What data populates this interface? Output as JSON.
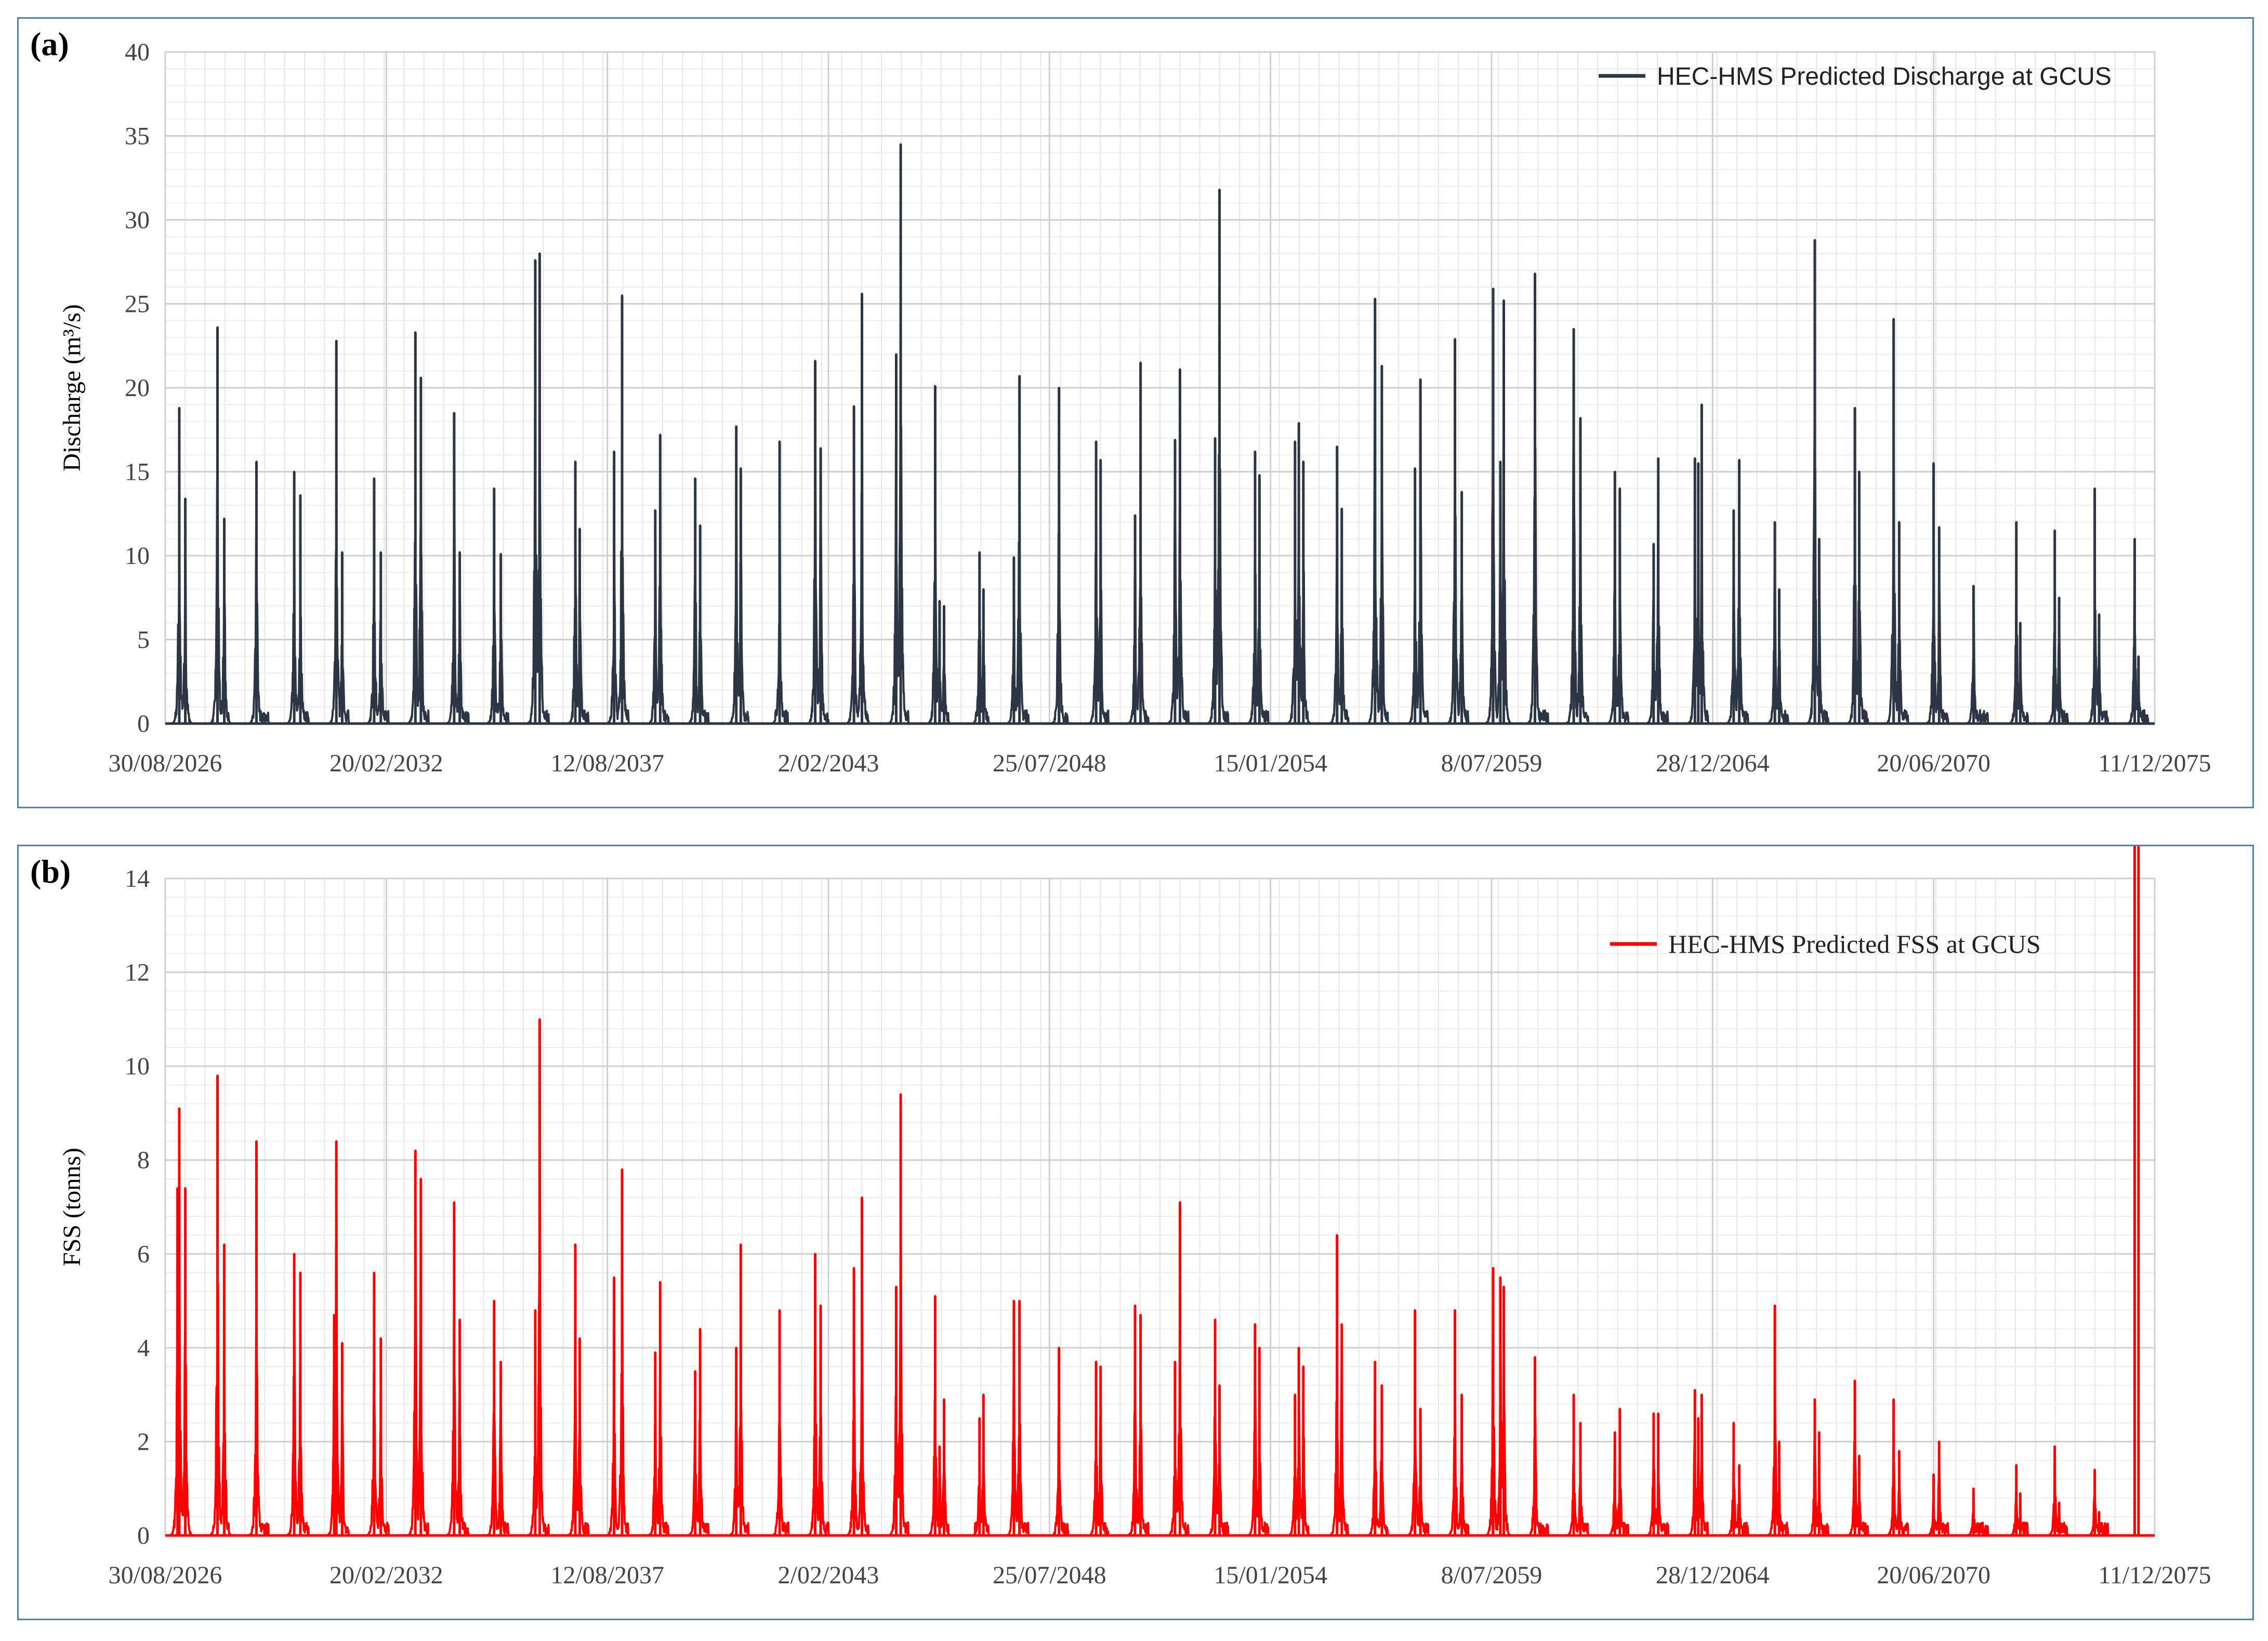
{
  "panels": {
    "a": {
      "letter": "(a)"
    },
    "b": {
      "letter": "(b)"
    }
  },
  "chart_data": [
    {
      "type": "line",
      "title": "",
      "xlabel": "",
      "ylabel": "Discharge (m³/s)",
      "ylim": [
        0,
        40
      ],
      "y_ticks": [
        "0",
        "5",
        "10",
        "15",
        "20",
        "25",
        "30",
        "35",
        "40"
      ],
      "x_range": [
        "2026-08-30",
        "2076-06-01"
      ],
      "x_ticks": [
        "30/08/2026",
        "20/02/2032",
        "12/08/2037",
        "2/02/2043",
        "25/07/2048",
        "15/01/2054",
        "8/07/2059",
        "28/12/2064",
        "20/06/2070",
        "11/12/2075"
      ],
      "grid": true,
      "legend_position": "top-right",
      "color": "#2b3543",
      "series": [
        {
          "name": "HEC-HMS Predicted Discharge at GCUS",
          "peak_dates": [
            "2027-01-05",
            "2027-03-01",
            "2027-12-20",
            "2028-02-20",
            "2028-12-10",
            "2029-11-20",
            "2030-01-15",
            "2030-12-10",
            "2031-02-01",
            "2031-11-20",
            "2032-01-20",
            "2032-12-01",
            "2033-01-20",
            "2033-11-20",
            "2034-01-10",
            "2034-11-20",
            "2035-01-20",
            "2035-12-01",
            "2036-01-10",
            "2036-12-01",
            "2037-01-10",
            "2037-11-20",
            "2038-02-01",
            "2038-12-01",
            "2039-01-15",
            "2039-12-01",
            "2040-01-15",
            "2040-12-10",
            "2041-01-20",
            "2042-01-10",
            "2042-12-01",
            "2043-01-20",
            "2043-11-20",
            "2044-02-01",
            "2044-12-10",
            "2045-01-20",
            "2045-12-01",
            "2046-01-10",
            "2046-02-20",
            "2047-01-10",
            "2047-02-15",
            "2047-11-20",
            "2048-01-10",
            "2049-01-05",
            "2049-12-10",
            "2050-01-20",
            "2050-12-01",
            "2051-01-20",
            "2051-12-01",
            "2052-01-15",
            "2052-12-01",
            "2053-01-10",
            "2053-12-01",
            "2054-01-10",
            "2054-12-01",
            "2055-01-05",
            "2055-02-15",
            "2055-12-20",
            "2056-02-01",
            "2056-12-01",
            "2057-02-01",
            "2057-12-01",
            "2058-01-20",
            "2058-12-01",
            "2059-02-01",
            "2059-11-15",
            "2060-01-20",
            "2060-02-20",
            "2060-12-01",
            "2061-11-20",
            "2062-01-20",
            "2062-12-01",
            "2063-01-15",
            "2063-11-20",
            "2064-01-01",
            "2064-12-01",
            "2065-01-01",
            "2065-02-01",
            "2065-11-20",
            "2066-01-10",
            "2066-12-01",
            "2067-01-10",
            "2067-12-01",
            "2068-01-10",
            "2068-12-01",
            "2069-01-10",
            "2069-11-20",
            "2070-01-10",
            "2070-11-20",
            "2071-01-10",
            "2071-11-20",
            "2072-12-15",
            "2073-01-20",
            "2073-12-01",
            "2074-01-10",
            "2074-12-01",
            "2075-01-10",
            "2075-12-01",
            "2076-01-05"
          ],
          "peak_values": [
            18.8,
            13.4,
            23.6,
            12.2,
            15.6,
            15.0,
            13.6,
            22.8,
            10.2,
            14.6,
            10.2,
            23.3,
            20.6,
            18.5,
            10.2,
            14.0,
            10.1,
            27.6,
            28.0,
            15.6,
            11.6,
            16.2,
            25.5,
            12.7,
            17.2,
            14.6,
            11.8,
            17.7,
            15.2,
            16.8,
            21.6,
            16.4,
            18.9,
            25.6,
            22.0,
            34.5,
            20.1,
            7.3,
            7.0,
            10.2,
            8.0,
            9.9,
            20.7,
            20.0,
            16.8,
            15.7,
            12.4,
            21.5,
            16.9,
            21.1,
            17.0,
            31.8,
            16.2,
            14.8,
            16.8,
            17.9,
            15.6,
            16.5,
            12.8,
            25.3,
            21.3,
            15.2,
            20.5,
            22.9,
            13.8,
            25.9,
            15.6,
            25.2,
            26.8,
            23.5,
            18.2,
            15.0,
            14.0,
            10.7,
            15.8,
            15.8,
            15.5,
            19.0,
            12.7,
            15.7,
            12.0,
            8.0,
            28.8,
            11.0,
            18.8,
            15.0,
            24.1,
            12.0,
            15.5,
            11.7,
            8.2,
            12.0,
            6.0,
            11.5,
            7.5,
            14.0,
            6.5,
            11.0,
            4.0
          ]
        }
      ]
    },
    {
      "type": "line",
      "title": "",
      "xlabel": "",
      "ylabel": "FSS (tonns)",
      "ylim": [
        0,
        14
      ],
      "y_ticks": [
        "0",
        "2",
        "4",
        "6",
        "8",
        "10",
        "12",
        "14"
      ],
      "x_range": [
        "2026-08-30",
        "2076-06-01"
      ],
      "x_ticks": [
        "30/08/2026",
        "20/02/2032",
        "12/08/2037",
        "2/02/2043",
        "25/07/2048",
        "15/01/2054",
        "8/07/2059",
        "28/12/2064",
        "20/06/2070",
        "11/12/2075"
      ],
      "grid": true,
      "legend_position": "top-right",
      "color": "#ff0000",
      "series": [
        {
          "name": "HEC-HMS Predicted FSS at GCUS",
          "peak_dates": [
            "2026-12-20",
            "2027-01-05",
            "2027-03-01",
            "2027-12-20",
            "2028-02-20",
            "2028-12-10",
            "2029-11-20",
            "2030-01-15",
            "2030-11-20",
            "2030-12-10",
            "2031-02-01",
            "2031-11-20",
            "2032-01-20",
            "2032-12-01",
            "2033-01-20",
            "2033-11-20",
            "2034-01-10",
            "2034-11-20",
            "2035-01-20",
            "2035-12-01",
            "2036-01-10",
            "2036-12-01",
            "2037-01-10",
            "2037-11-20",
            "2038-02-01",
            "2038-12-01",
            "2039-01-15",
            "2039-12-01",
            "2040-01-15",
            "2040-12-10",
            "2041-01-20",
            "2042-01-10",
            "2042-12-01",
            "2043-01-20",
            "2043-11-20",
            "2044-02-01",
            "2044-12-10",
            "2045-01-20",
            "2045-12-01",
            "2046-01-10",
            "2046-02-20",
            "2047-01-10",
            "2047-02-15",
            "2047-11-20",
            "2048-01-10",
            "2049-01-05",
            "2049-12-10",
            "2050-01-20",
            "2050-12-01",
            "2051-01-20",
            "2051-12-01",
            "2052-01-15",
            "2052-12-01",
            "2053-01-10",
            "2053-12-01",
            "2054-01-10",
            "2054-12-01",
            "2055-01-05",
            "2055-02-15",
            "2055-12-20",
            "2056-02-01",
            "2056-12-01",
            "2057-02-01",
            "2057-12-01",
            "2058-01-20",
            "2058-12-01",
            "2059-02-01",
            "2059-11-15",
            "2060-01-20",
            "2060-02-20",
            "2060-12-01",
            "2061-11-20",
            "2062-01-20",
            "2062-12-01",
            "2063-01-15",
            "2063-11-20",
            "2064-01-01",
            "2064-12-01",
            "2065-01-01",
            "2065-02-01",
            "2065-11-20",
            "2066-01-10",
            "2066-12-01",
            "2067-01-10",
            "2067-12-01",
            "2068-01-10",
            "2068-12-01",
            "2069-01-10",
            "2069-11-20",
            "2070-01-10",
            "2070-11-20",
            "2071-01-10",
            "2071-11-20",
            "2072-12-15",
            "2073-01-20",
            "2073-12-01",
            "2074-01-10",
            "2074-12-01",
            "2075-01-10",
            "2075-12-01",
            "2076-01-05"
          ],
          "peak_values": [
            7.4,
            9.1,
            7.4,
            9.8,
            6.2,
            8.4,
            6.0,
            5.6,
            4.7,
            8.4,
            4.1,
            5.6,
            4.2,
            8.2,
            7.6,
            7.1,
            4.6,
            5.0,
            3.7,
            4.8,
            11.0,
            6.2,
            4.2,
            5.5,
            7.8,
            3.9,
            5.4,
            3.5,
            4.4,
            4.0,
            6.2,
            4.8,
            6.0,
            4.9,
            5.7,
            7.2,
            5.3,
            9.4,
            5.1,
            1.9,
            2.9,
            2.5,
            3.0,
            5.0,
            5.0,
            4.0,
            3.7,
            3.6,
            4.9,
            4.7,
            3.7,
            7.1,
            4.6,
            3.2,
            4.5,
            4.0,
            3.0,
            4.0,
            3.6,
            6.4,
            4.5,
            3.7,
            3.2,
            4.8,
            2.7,
            4.8,
            3.0,
            5.7,
            5.5,
            5.3,
            3.8,
            3.0,
            2.4,
            2.2,
            2.7,
            2.6,
            2.6,
            3.1,
            2.5,
            3.0,
            2.4,
            1.5,
            4.9,
            2.0,
            2.9,
            2.2,
            3.3,
            1.7,
            2.9,
            1.8,
            1.3,
            2.0,
            1.0,
            1.5,
            0.9,
            1.9,
            0.7,
            1.4,
            0.5
          ]
        }
      ]
    }
  ]
}
